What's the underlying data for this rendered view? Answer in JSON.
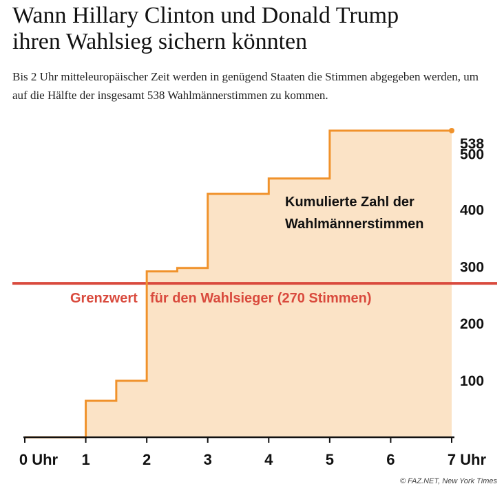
{
  "article": {
    "headline_line1": "Wann Hillary Clinton und Donald Trump",
    "headline_line2": "ihren Wahlsieg sichern könnten",
    "deck": "Bis 2 Uhr mitteleuropäischer Zeit werden in genügend Staaten die Stimmen abgegeben werden, um auf die Hälfte der insgesamt 538 Wahlmännerstimmen zu kommen.",
    "source": "© FAZ.NET, New York Times"
  },
  "colors": {
    "step_line": "#f0922b",
    "area_fill": "#fbe3c6",
    "threshold_line": "#d94a3d",
    "threshold_text": "#d94a3d",
    "axis": "#111111"
  },
  "chart_data": {
    "type": "area",
    "series_label": "Kumulierte Zahl der Wahlmännerstimmen",
    "series_label_lines": [
      "Kumulierte Zahl der",
      "Wahlmännerstimmen"
    ],
    "x_ticks": [
      {
        "value": 0,
        "label": "0 Uhr"
      },
      {
        "value": 1,
        "label": "1"
      },
      {
        "value": 2,
        "label": "2"
      },
      {
        "value": 3,
        "label": "3"
      },
      {
        "value": 4,
        "label": "4"
      },
      {
        "value": 5,
        "label": "5"
      },
      {
        "value": 6,
        "label": "6"
      },
      {
        "value": 7,
        "label": "7 Uhr"
      }
    ],
    "y_ticks": [
      {
        "value": 100,
        "label": "100"
      },
      {
        "value": 200,
        "label": "200"
      },
      {
        "value": 300,
        "label": "300"
      },
      {
        "value": 400,
        "label": "400"
      },
      {
        "value": 500,
        "label": "500"
      },
      {
        "value": 538,
        "label": "538"
      }
    ],
    "xlim": [
      0,
      7
    ],
    "ylim": [
      0,
      538
    ],
    "steps": [
      {
        "x": 0,
        "y": 0
      },
      {
        "x": 1,
        "y": 64
      },
      {
        "x": 1.5,
        "y": 99
      },
      {
        "x": 2,
        "y": 291
      },
      {
        "x": 2.5,
        "y": 297
      },
      {
        "x": 3,
        "y": 427
      },
      {
        "x": 4,
        "y": 454
      },
      {
        "x": 5,
        "y": 538
      },
      {
        "x": 7,
        "y": 538
      }
    ],
    "threshold": {
      "value": 270,
      "label_part1": "Grenzwert",
      "label_part2": "für den Wahlsieger (270 Stimmen)"
    },
    "grid": false
  }
}
